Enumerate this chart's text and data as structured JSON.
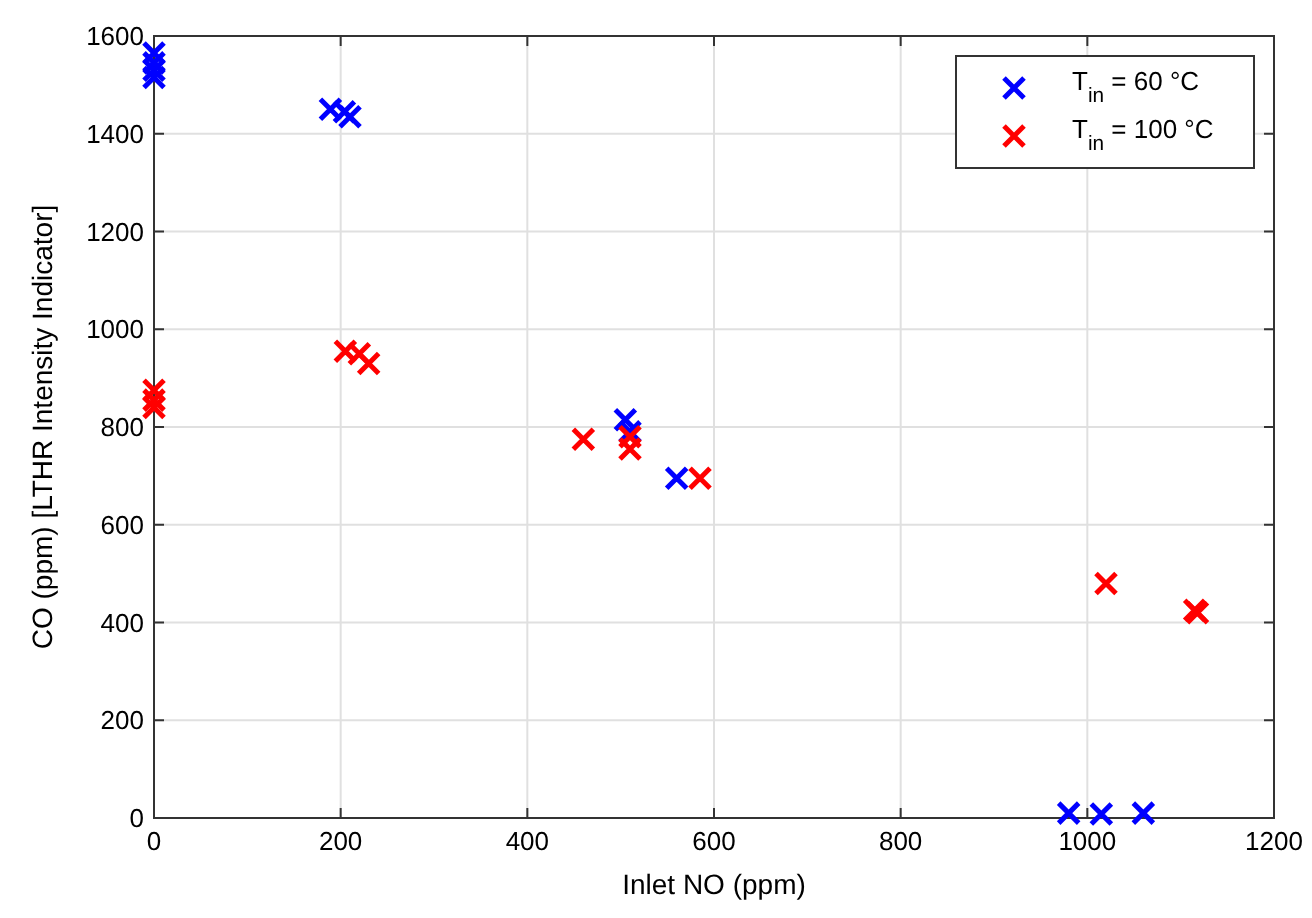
{
  "chart_data": {
    "type": "scatter",
    "xlabel": "Inlet NO (ppm)",
    "ylabel": "CO (ppm) [LTHR Intensity Indicator]",
    "xlim": [
      0,
      1200
    ],
    "ylim": [
      0,
      1600
    ],
    "xticks": [
      0,
      200,
      400,
      600,
      800,
      1000,
      1200
    ],
    "yticks": [
      0,
      200,
      400,
      600,
      800,
      1000,
      1200,
      1400,
      1600
    ],
    "grid": true,
    "legend": "top right",
    "marker": "cross",
    "series": [
      {
        "name": "T$_{in}$ = 60 °C",
        "color": "#0000ff",
        "x": [
          0,
          0,
          0,
          0,
          189,
          204,
          210,
          505,
          510,
          560,
          980,
          1015,
          1060
        ],
        "values": [
          1565,
          1545,
          1530,
          1515,
          1450,
          1445,
          1435,
          815,
          790,
          695,
          10,
          8,
          10
        ]
      },
      {
        "name": "T$_{in}$ = 100 °C",
        "color": "#ff0000",
        "x": [
          0,
          0,
          0,
          205,
          220,
          230,
          460,
          510,
          510,
          585,
          1020,
          1115,
          1118
        ],
        "values": [
          875,
          855,
          840,
          955,
          950,
          930,
          775,
          780,
          755,
          695,
          480,
          425,
          420
        ]
      }
    ]
  }
}
